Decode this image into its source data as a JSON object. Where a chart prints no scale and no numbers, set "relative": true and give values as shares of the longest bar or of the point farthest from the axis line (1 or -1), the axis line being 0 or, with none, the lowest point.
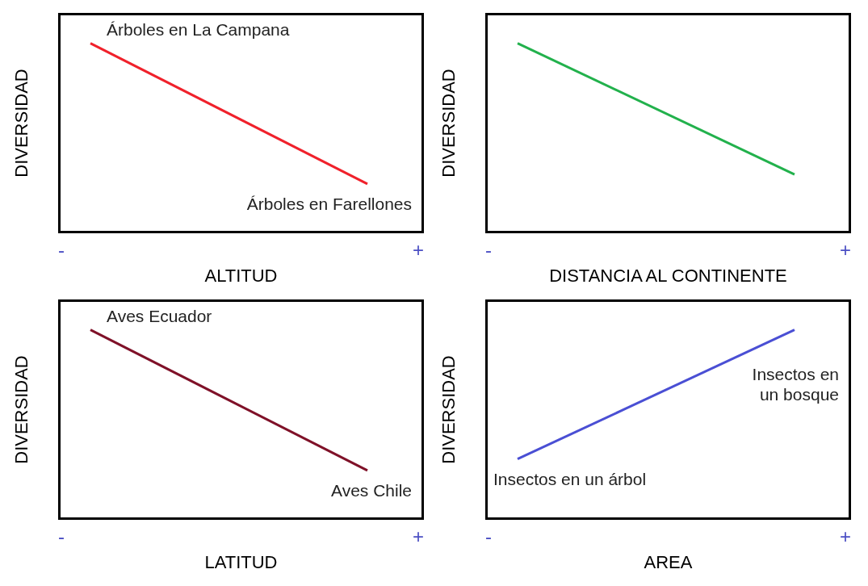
{
  "chart_data": [
    {
      "type": "line",
      "relative": true,
      "categories": [
        null,
        null
      ],
      "values": [
        1,
        0.26
      ],
      "color": "#f0212b",
      "xlabel": "ALTITUD",
      "ylabel": "DIVERSIDAD",
      "annotations": [
        "-",
        "+",
        "Árboles en La Campana",
        "Árboles en Farellones"
      ]
    },
    {
      "type": "line",
      "relative": true,
      "categories": [
        null,
        null
      ],
      "values": [
        1,
        0.31
      ],
      "color": "#22b14c",
      "xlabel": "DISTANCIA AL CONTINENTE",
      "ylabel": "DIVERSIDAD",
      "annotations": [
        "-",
        "+"
      ]
    },
    {
      "type": "line",
      "relative": true,
      "categories": [
        null,
        null
      ],
      "values": [
        1,
        0.26
      ],
      "color": "#7f1128",
      "xlabel": "LATITUD",
      "ylabel": "DIVERSIDAD",
      "annotations": [
        "-",
        "+",
        "Aves Ecuador",
        "Aves Chile"
      ]
    },
    {
      "type": "line",
      "relative": true,
      "categories": [
        null,
        null
      ],
      "values": [
        0.32,
        1
      ],
      "color": "#4a4fd4",
      "xlabel": "AREA",
      "ylabel": "DIVERSIDAD",
      "annotations": [
        "-",
        "+",
        "Insectos en un árbol",
        "Insectos en un bosque"
      ]
    }
  ]
}
